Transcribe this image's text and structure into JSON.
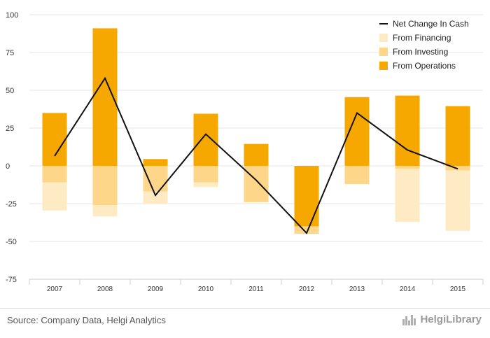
{
  "chart_data": {
    "type": "bar",
    "categories": [
      "2007",
      "2008",
      "2009",
      "2010",
      "2011",
      "2012",
      "2013",
      "2014",
      "2015"
    ],
    "series": [
      {
        "name": "From Operations",
        "kind": "bar",
        "color": "#f6a800",
        "values": [
          35,
          91,
          4.5,
          34.5,
          14.5,
          -40,
          45.5,
          46.5,
          39.5
        ]
      },
      {
        "name": "From Investing",
        "kind": "bar",
        "color": "#fdd68a",
        "values": [
          -11,
          -26,
          -17,
          -11,
          -24,
          -5,
          -12,
          -2,
          -3
        ]
      },
      {
        "name": "From Financing",
        "kind": "bar",
        "color": "#feebc4",
        "values": [
          -18.5,
          -7.5,
          -8,
          -3,
          0,
          0,
          0,
          -35,
          -40
        ]
      },
      {
        "name": "Net Change In Cash",
        "kind": "line",
        "color": "#111111",
        "values": [
          6.5,
          58,
          -19.5,
          21,
          -9.5,
          -44.5,
          35,
          10.5,
          -2
        ]
      }
    ],
    "legend_order": [
      "Net Change In Cash",
      "From Financing",
      "From Investing",
      "From Operations"
    ],
    "ylim": [
      -75,
      100
    ],
    "yticks": [
      100,
      75,
      50,
      25,
      0,
      -25,
      -50,
      -75
    ],
    "grid": true,
    "legend": "top-right",
    "title": "",
    "xlabel": "",
    "ylabel": ""
  },
  "footer": {
    "source": "Source: Company Data, Helgi Analytics",
    "logo_name": "HelgiLibrary"
  }
}
